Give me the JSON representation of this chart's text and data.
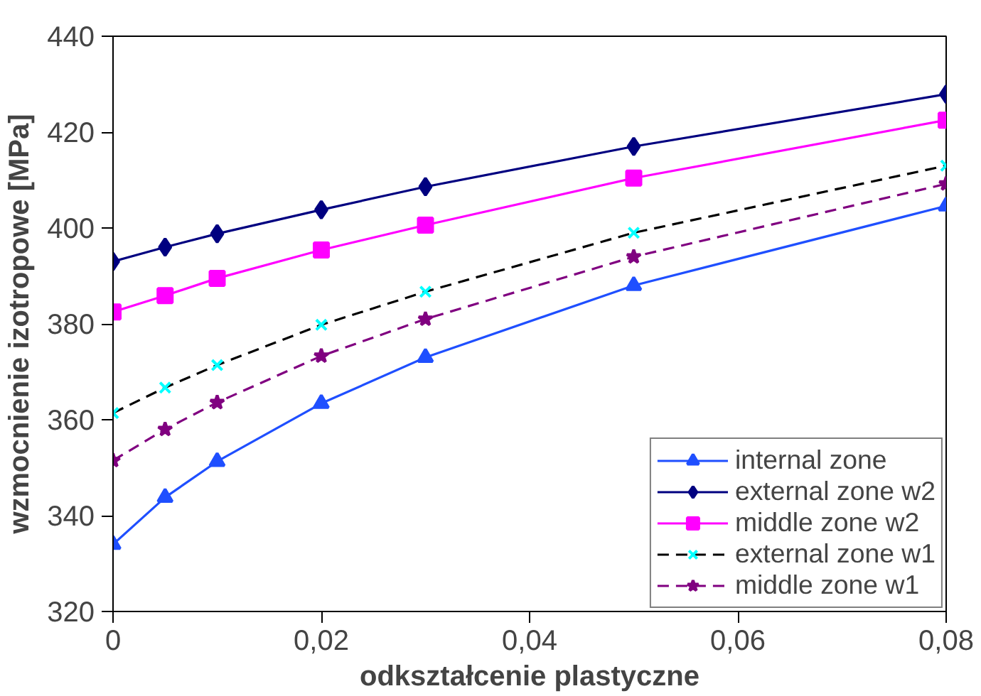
{
  "chart_data": {
    "type": "line",
    "xlabel": "odkształcenie plastyczne",
    "ylabel": "wzmocnienie izotropowe [MPa]",
    "x": [
      0,
      0.005,
      0.01,
      0.02,
      0.03,
      0.05,
      0.08
    ],
    "xlim": [
      0,
      0.08
    ],
    "xticks": [
      {
        "value": 0,
        "label": "0"
      },
      {
        "value": 0.02,
        "label": "0,02"
      },
      {
        "value": 0.04,
        "label": "0,04"
      },
      {
        "value": 0.06,
        "label": "0,06"
      },
      {
        "value": 0.08,
        "label": "0,08"
      }
    ],
    "ylim": [
      320,
      440
    ],
    "yticks": [
      320,
      340,
      360,
      380,
      400,
      420,
      440
    ],
    "grid": false,
    "legend": "bottom right",
    "series": [
      {
        "name": "internal zone",
        "color": "#1f4fff",
        "marker": "triangle",
        "line_style": "solid",
        "values": [
          334,
          343.8,
          351.3,
          363.4,
          373,
          388,
          404.6
        ]
      },
      {
        "name": "external zone w2",
        "color": "#000080",
        "marker": "diamond",
        "line_style": "solid",
        "values": [
          393,
          396,
          398.8,
          403.8,
          408.6,
          417,
          427.9
        ]
      },
      {
        "name": "middle zone w2",
        "color": "#ff00ff",
        "marker": "square",
        "line_style": "solid",
        "values": [
          382.5,
          385.9,
          389.5,
          395.4,
          400.6,
          410.4,
          422.5
        ]
      },
      {
        "name": "external zone w1",
        "color": "#000000",
        "marker": "cross",
        "colors": [
          "#00ffff",
          "#00ffff",
          "#00ffff",
          "#00ffff",
          "#00ffff",
          "#00ffff",
          "#00ffff"
        ],
        "line_style": "dashed",
        "values": [
          361.4,
          366.7,
          371.4,
          379.8,
          386.7,
          399,
          413
        ]
      },
      {
        "name": "middle zone w1",
        "color": "#800080",
        "marker": "star",
        "line_style": "dashed",
        "values": [
          351.5,
          358,
          363.6,
          373.3,
          381,
          394,
          409.2
        ]
      }
    ]
  }
}
